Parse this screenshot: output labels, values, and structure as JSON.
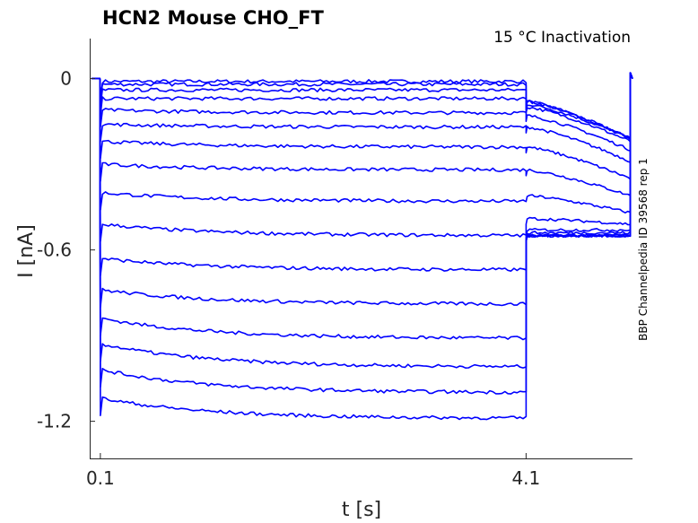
{
  "chart_data": {
    "type": "line",
    "title": "HCN2  Mouse  CHO_FT",
    "subtitle": "15 °C  Inactivation",
    "side_note": "BBP Channelpedia ID 39568 rep 1",
    "xlabel": "t [s]",
    "ylabel": "I [nA]",
    "xlim": [
      0.0,
      5.1
    ],
    "ylim": [
      -1.33,
      0.14
    ],
    "x_ticks": [
      0.1,
      4.1
    ],
    "x_tick_labels": [
      "0.1",
      "4.1"
    ],
    "y_ticks": [
      0,
      -0.6,
      -1.2
    ],
    "y_tick_labels": [
      "0",
      "-0.6",
      "-1.2"
    ],
    "grid": false,
    "color": "#0000ff",
    "protocol": {
      "step_start": 0.1,
      "step_end": 4.1,
      "test_end": 5.08,
      "sweep_end": 5.1
    },
    "series": [
      {
        "values": {
          "baseline": 0.0,
          "step_start": -0.01,
          "step_end": -0.01,
          "test_start": -0.08,
          "test_end": -0.21
        }
      },
      {
        "values": {
          "baseline": 0.0,
          "step_start": -0.02,
          "step_end": -0.02,
          "test_start": -0.08,
          "test_end": -0.21
        }
      },
      {
        "values": {
          "baseline": 0.0,
          "step_start": -0.04,
          "step_end": -0.04,
          "test_start": -0.09,
          "test_end": -0.21
        }
      },
      {
        "values": {
          "baseline": 0.0,
          "step_start": -0.07,
          "step_end": -0.07,
          "test_start": -0.1,
          "test_end": -0.22
        }
      },
      {
        "values": {
          "baseline": 0.0,
          "step_start": -0.11,
          "step_end": -0.12,
          "test_start": -0.13,
          "test_end": -0.25
        }
      },
      {
        "values": {
          "baseline": 0.0,
          "step_start": -0.16,
          "step_end": -0.17,
          "test_start": -0.17,
          "test_end": -0.29
        }
      },
      {
        "values": {
          "baseline": 0.0,
          "step_start": -0.22,
          "step_end": -0.24,
          "test_start": -0.24,
          "test_end": -0.35
        }
      },
      {
        "values": {
          "baseline": 0.0,
          "step_start": -0.3,
          "step_end": -0.32,
          "test_start": -0.32,
          "test_end": -0.41
        }
      },
      {
        "values": {
          "baseline": 0.0,
          "step_start": -0.4,
          "step_end": -0.43,
          "test_start": -0.41,
          "test_end": -0.47
        }
      },
      {
        "values": {
          "baseline": 0.0,
          "step_start": -0.51,
          "step_end": -0.55,
          "test_start": -0.49,
          "test_end": -0.51
        }
      },
      {
        "values": {
          "baseline": 0.0,
          "step_start": -0.63,
          "step_end": -0.67,
          "test_start": -0.53,
          "test_end": -0.53
        }
      },
      {
        "values": {
          "baseline": 0.0,
          "step_start": -0.74,
          "step_end": -0.79,
          "test_start": -0.54,
          "test_end": -0.54
        }
      },
      {
        "values": {
          "baseline": 0.0,
          "step_start": -0.84,
          "step_end": -0.91,
          "test_start": -0.55,
          "test_end": -0.55
        }
      },
      {
        "values": {
          "baseline": 0.0,
          "step_start": -0.93,
          "step_end": -1.01,
          "test_start": -0.55,
          "test_end": -0.55
        }
      },
      {
        "values": {
          "baseline": 0.0,
          "step_start": -1.02,
          "step_end": -1.1,
          "test_start": -0.55,
          "test_end": -0.55
        }
      },
      {
        "values": {
          "baseline": 0.0,
          "step_start": -1.12,
          "step_end": -1.19,
          "test_start": -0.55,
          "test_end": -0.55
        }
      }
    ]
  }
}
